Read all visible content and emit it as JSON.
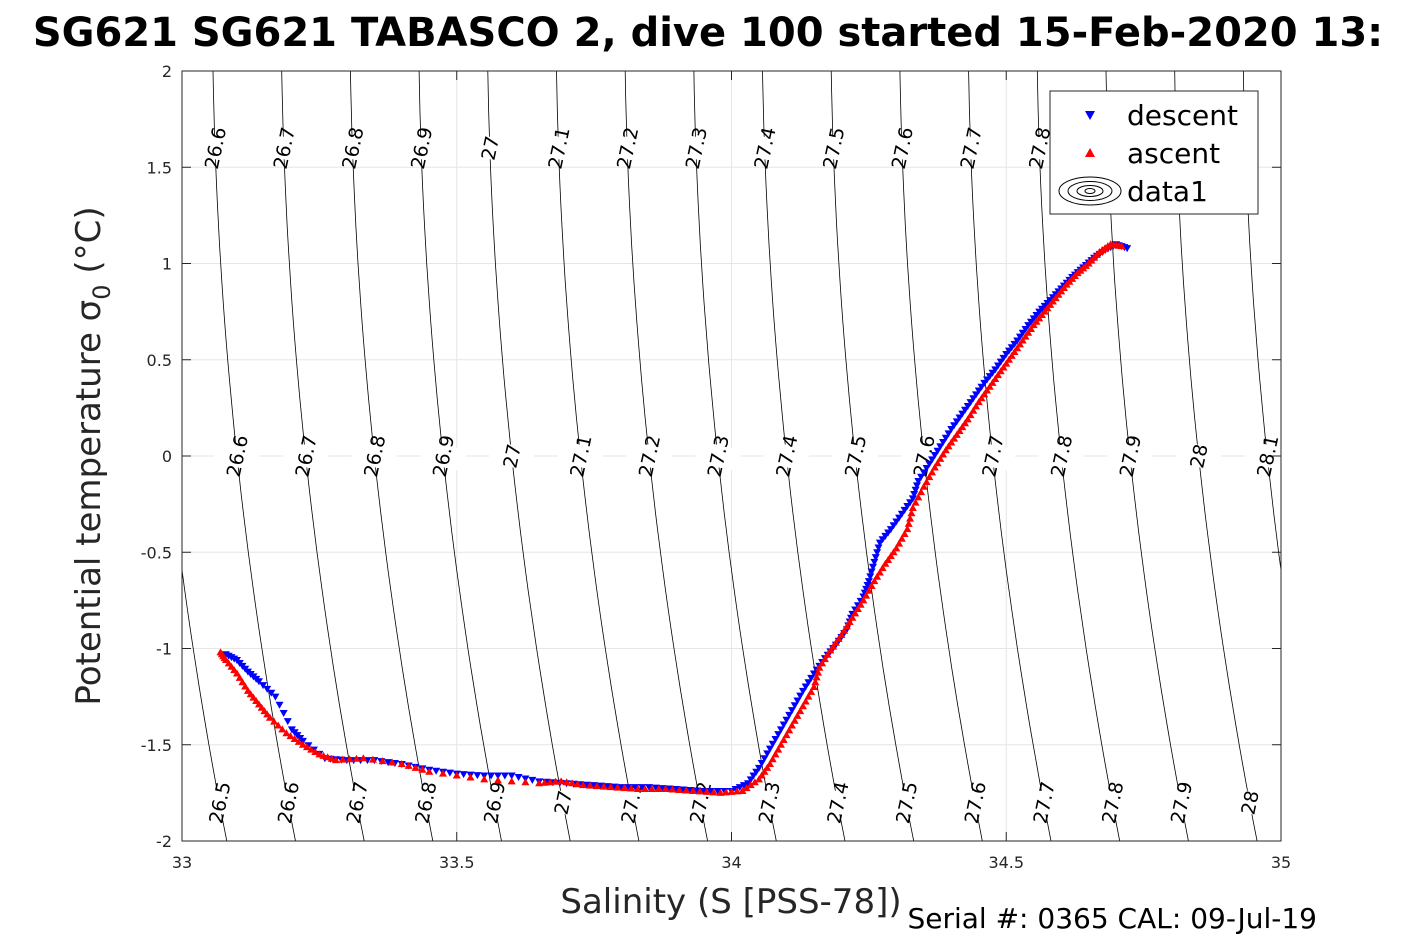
{
  "chart_data": {
    "type": "scatter",
    "title": "SG621 SG621 TABASCO 2, dive 100 started 15-Feb-2020 13:",
    "xlabel": "Salinity (S [PSS-78])",
    "ylabel": "Potential temperature σ",
    "ylabel_subscript": "0",
    "ylabel_unit": " (°C)",
    "xlim": [
      33,
      35
    ],
    "ylim": [
      -2,
      2
    ],
    "xticks": [
      33,
      33.5,
      34,
      34.5,
      35
    ],
    "xtick_labels": [
      "33",
      "33.5",
      "34",
      "34.5",
      "35"
    ],
    "yticks": [
      -2,
      -1.5,
      -1,
      -0.5,
      0,
      0.5,
      1,
      1.5,
      2
    ],
    "ytick_labels": [
      "-2",
      "-1.5",
      "-1",
      "-0.5",
      "0",
      "0.5",
      "1",
      "1.5",
      "2"
    ],
    "grid": true,
    "legend_position": "top-right",
    "legend": [
      "descent",
      "ascent",
      "data1"
    ],
    "footer": "Serial #: 0365  CAL: 09-Jul-19",
    "density_contours": {
      "levels": [
        26.5,
        26.6,
        26.7,
        26.8,
        26.9,
        27,
        27.1,
        27.2,
        27.3,
        27.4,
        27.5,
        27.6,
        27.7,
        27.8,
        27.9,
        28,
        28.1
      ],
      "labels": [
        "26.5",
        "26.6",
        "26.7",
        "26.8",
        "26.9",
        "27",
        "27.1",
        "27.2",
        "27.3",
        "27.4",
        "27.5",
        "27.6",
        "27.7",
        "27.8",
        "27.9",
        "28",
        "28.1"
      ]
    },
    "series": [
      {
        "name": "descent",
        "color": "#0000ff",
        "marker": "triangle-down",
        "points": [
          [
            34.72,
            1.08
          ],
          [
            34.7,
            1.1
          ],
          [
            34.68,
            1.07
          ],
          [
            34.66,
            1.03
          ],
          [
            34.64,
            0.98
          ],
          [
            34.62,
            0.93
          ],
          [
            34.6,
            0.87
          ],
          [
            34.58,
            0.81
          ],
          [
            34.56,
            0.75
          ],
          [
            34.54,
            0.68
          ],
          [
            34.52,
            0.6
          ],
          [
            34.5,
            0.53
          ],
          [
            34.48,
            0.45
          ],
          [
            34.46,
            0.38
          ],
          [
            34.44,
            0.3
          ],
          [
            34.42,
            0.22
          ],
          [
            34.4,
            0.14
          ],
          [
            34.38,
            0.05
          ],
          [
            34.36,
            -0.04
          ],
          [
            34.34,
            -0.13
          ],
          [
            34.33,
            -0.22
          ],
          [
            34.31,
            -0.3
          ],
          [
            34.29,
            -0.38
          ],
          [
            34.27,
            -0.45
          ],
          [
            34.26,
            -0.55
          ],
          [
            34.25,
            -0.65
          ],
          [
            34.24,
            -0.73
          ],
          [
            34.22,
            -0.82
          ],
          [
            34.21,
            -0.9
          ],
          [
            34.19,
            -0.98
          ],
          [
            34.17,
            -1.05
          ],
          [
            34.15,
            -1.13
          ],
          [
            34.13,
            -1.22
          ],
          [
            34.11,
            -1.32
          ],
          [
            34.09,
            -1.42
          ],
          [
            34.07,
            -1.52
          ],
          [
            34.05,
            -1.62
          ],
          [
            34.03,
            -1.7
          ],
          [
            34.0,
            -1.74
          ],
          [
            33.95,
            -1.74
          ],
          [
            33.9,
            -1.73
          ],
          [
            33.85,
            -1.72
          ],
          [
            33.8,
            -1.72
          ],
          [
            33.75,
            -1.71
          ],
          [
            33.7,
            -1.7
          ],
          [
            33.65,
            -1.69
          ],
          [
            33.6,
            -1.66
          ],
          [
            33.55,
            -1.66
          ],
          [
            33.5,
            -1.65
          ],
          [
            33.45,
            -1.63
          ],
          [
            33.4,
            -1.6
          ],
          [
            33.35,
            -1.58
          ],
          [
            33.3,
            -1.58
          ],
          [
            33.26,
            -1.57
          ],
          [
            33.22,
            -1.48
          ],
          [
            33.2,
            -1.42
          ],
          [
            33.17,
            -1.25
          ],
          [
            33.14,
            -1.17
          ],
          [
            33.12,
            -1.12
          ],
          [
            33.1,
            -1.06
          ],
          [
            33.08,
            -1.03
          ]
        ]
      },
      {
        "name": "ascent",
        "color": "#ff0000",
        "marker": "triangle-up",
        "points": [
          [
            34.71,
            1.09
          ],
          [
            34.69,
            1.1
          ],
          [
            34.67,
            1.06
          ],
          [
            34.65,
            1.0
          ],
          [
            34.63,
            0.95
          ],
          [
            34.61,
            0.89
          ],
          [
            34.59,
            0.82
          ],
          [
            34.57,
            0.75
          ],
          [
            34.55,
            0.68
          ],
          [
            34.53,
            0.6
          ],
          [
            34.51,
            0.52
          ],
          [
            34.49,
            0.44
          ],
          [
            34.47,
            0.36
          ],
          [
            34.45,
            0.28
          ],
          [
            34.43,
            0.19
          ],
          [
            34.41,
            0.11
          ],
          [
            34.39,
            0.03
          ],
          [
            34.37,
            -0.06
          ],
          [
            34.35,
            -0.16
          ],
          [
            34.33,
            -0.27
          ],
          [
            34.32,
            -0.38
          ],
          [
            34.3,
            -0.48
          ],
          [
            34.28,
            -0.56
          ],
          [
            34.26,
            -0.65
          ],
          [
            34.24,
            -0.75
          ],
          [
            34.22,
            -0.84
          ],
          [
            34.2,
            -0.93
          ],
          [
            34.18,
            -1.01
          ],
          [
            34.16,
            -1.1
          ],
          [
            34.15,
            -1.2
          ],
          [
            34.13,
            -1.3
          ],
          [
            34.11,
            -1.4
          ],
          [
            34.09,
            -1.5
          ],
          [
            34.07,
            -1.6
          ],
          [
            34.05,
            -1.68
          ],
          [
            34.02,
            -1.74
          ],
          [
            33.98,
            -1.75
          ],
          [
            33.93,
            -1.74
          ],
          [
            33.88,
            -1.73
          ],
          [
            33.83,
            -1.73
          ],
          [
            33.78,
            -1.72
          ],
          [
            33.73,
            -1.71
          ],
          [
            33.69,
            -1.69
          ],
          [
            33.65,
            -1.7
          ],
          [
            33.55,
            -1.68
          ],
          [
            33.45,
            -1.64
          ],
          [
            33.4,
            -1.6
          ],
          [
            33.33,
            -1.57
          ],
          [
            33.28,
            -1.58
          ],
          [
            33.25,
            -1.55
          ],
          [
            33.22,
            -1.5
          ],
          [
            33.19,
            -1.44
          ],
          [
            33.16,
            -1.36
          ],
          [
            33.14,
            -1.29
          ],
          [
            33.12,
            -1.22
          ],
          [
            33.1,
            -1.13
          ],
          [
            33.08,
            -1.06
          ],
          [
            33.07,
            -1.02
          ]
        ]
      }
    ]
  }
}
